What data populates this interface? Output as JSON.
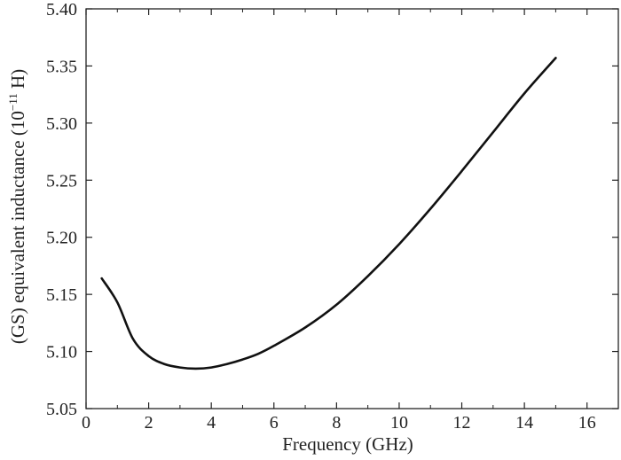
{
  "chart_data": {
    "type": "line",
    "title": "",
    "xlabel": "Frequency (GHz)",
    "ylabel": {
      "prefix": "(GS) equivalent inductance (10",
      "exponent": "−11",
      "suffix": " H)"
    },
    "xlim": [
      0,
      17
    ],
    "ylim": [
      5.05,
      5.4
    ],
    "x_ticks": [
      "0",
      "2",
      "4",
      "6",
      "8",
      "10",
      "12",
      "14",
      "16"
    ],
    "y_ticks": [
      "5.05",
      "5.10",
      "5.15",
      "5.20",
      "5.25",
      "5.30",
      "5.35",
      "5.40"
    ],
    "grid": false,
    "line_color": "#111111",
    "series": [
      {
        "x": [
          0.5,
          1.0,
          1.5,
          2.0,
          2.5,
          3.0,
          3.5,
          4.0,
          4.5,
          5.0,
          5.5,
          6.0,
          7.0,
          8.0,
          9.0,
          10.0,
          11.0,
          12.0,
          13.0,
          14.0,
          15.0
        ],
        "y": [
          5.164,
          5.143,
          5.111,
          5.096,
          5.089,
          5.086,
          5.085,
          5.086,
          5.089,
          5.093,
          5.098,
          5.105,
          5.121,
          5.141,
          5.166,
          5.194,
          5.225,
          5.258,
          5.292,
          5.326,
          5.357
        ]
      }
    ]
  }
}
